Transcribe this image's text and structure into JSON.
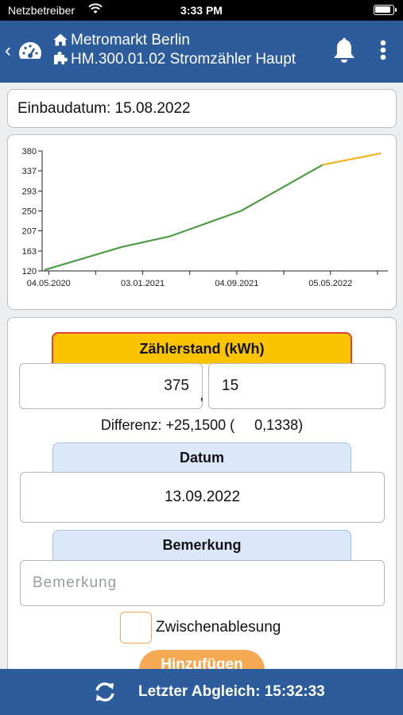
{
  "status_bar": {
    "carrier": "Netzbetreiber",
    "time": "3:33 PM"
  },
  "header": {
    "location": "Metromarkt Berlin",
    "meter": "HM.300.01.02 Stromzähler Haupt"
  },
  "install_date": {
    "label": "Einbaudatum: 15.08.2022"
  },
  "chart_data": {
    "type": "line",
    "x_tick_labels": [
      "04.05.2020",
      "03.01.2021",
      "04.09.2021",
      "05.05.2022"
    ],
    "y_tick_labels": [
      "120",
      "163",
      "207",
      "250",
      "293",
      "337",
      "380"
    ],
    "ylim": [
      120,
      380
    ],
    "grid": false,
    "series": [
      {
        "color": "#4e9a45",
        "x": [
          "2020-04-23",
          "2020-11-10",
          "2021-03-15",
          "2021-09-15",
          "2022-04-15"
        ],
        "y": [
          122,
          172,
          195,
          250,
          350
        ]
      },
      {
        "color": "#f3b21c",
        "x": [
          "2022-04-15",
          "2022-09-13"
        ],
        "y": [
          350,
          375
        ]
      }
    ]
  },
  "form": {
    "counter_tab": "Zählerstand (kWh)",
    "counter_int": "375",
    "comma": ",",
    "counter_dec": "15",
    "difference": "Differenz: +25,1500 (     0,1338)",
    "date_tab": "Datum",
    "date_value": "13.09.2022",
    "remark_tab": "Bemerkung",
    "remark_placeholder": "Bemerkung",
    "checkbox_label": "Zwischenablesung",
    "add_button": "Hinzufügen"
  },
  "footer": {
    "sync_text": "Letzter Abgleich: 15:32:33"
  },
  "colors": {
    "brand": "#2c5c9c",
    "accent": "#fcc400",
    "button": "#f5a952"
  }
}
